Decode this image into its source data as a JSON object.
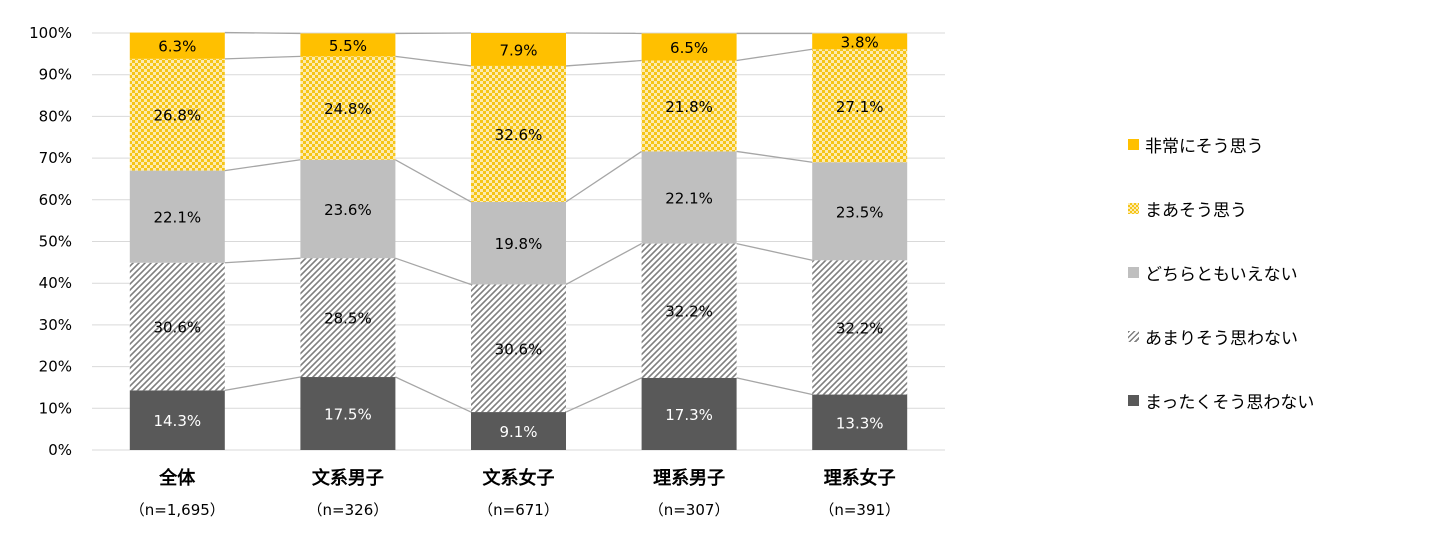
{
  "chart_data": {
    "type": "bar",
    "stacked": true,
    "percent_stacked": true,
    "ylim": [
      0,
      100
    ],
    "yticks": [
      "0%",
      "10%",
      "20%",
      "30%",
      "40%",
      "50%",
      "60%",
      "70%",
      "80%",
      "90%",
      "100%"
    ],
    "grid": true,
    "legend_position": "right",
    "categories": [
      "全体",
      "文系男子",
      "文系女子",
      "理系男子",
      "理系女子"
    ],
    "category_counts": [
      "（n=1,695）",
      "（n=326）",
      "（n=671）",
      "（n=307）",
      "（n=391）"
    ],
    "series": [
      {
        "name": "まったくそう思わない",
        "values": [
          14.3,
          17.5,
          9.1,
          17.3,
          13.3
        ],
        "labels": [
          "14.3%",
          "17.5%",
          "9.1%",
          "17.3%",
          "13.3%"
        ],
        "color": "#595959",
        "pattern": "solid",
        "label_color": "#ffffff"
      },
      {
        "name": "あまりそう思わない",
        "values": [
          30.6,
          28.5,
          30.6,
          32.2,
          32.2
        ],
        "labels": [
          "30.6%",
          "28.5%",
          "30.6%",
          "32.2%",
          "32.2%"
        ],
        "color": "#7f7f7f",
        "pattern": "hatch",
        "label_color": "#000000"
      },
      {
        "name": "どちらともいえない",
        "values": [
          22.1,
          23.6,
          19.8,
          22.1,
          23.5
        ],
        "labels": [
          "22.1%",
          "23.6%",
          "19.8%",
          "22.1%",
          "23.5%"
        ],
        "color": "#bfbfbf",
        "pattern": "solid",
        "label_color": "#000000"
      },
      {
        "name": "まあそう思う",
        "values": [
          26.8,
          24.8,
          32.6,
          21.8,
          27.1
        ],
        "labels": [
          "26.8%",
          "24.8%",
          "32.6%",
          "21.8%",
          "27.1%"
        ],
        "color": "#f5c518",
        "pattern": "dots",
        "label_color": "#000000"
      },
      {
        "name": "非常にそう思う",
        "values": [
          6.3,
          5.5,
          7.9,
          6.5,
          3.8
        ],
        "labels": [
          "6.3%",
          "5.5%",
          "7.9%",
          "6.5%",
          "3.8%"
        ],
        "color": "#ffc000",
        "pattern": "solid",
        "label_color": "#000000"
      }
    ],
    "legend_order": [
      "非常にそう思う",
      "まあそう思う",
      "どちらともいえない",
      "あまりそう思わない",
      "まったくそう思わない"
    ],
    "series_lines": true,
    "series_line_color": "#a6a6a6"
  }
}
